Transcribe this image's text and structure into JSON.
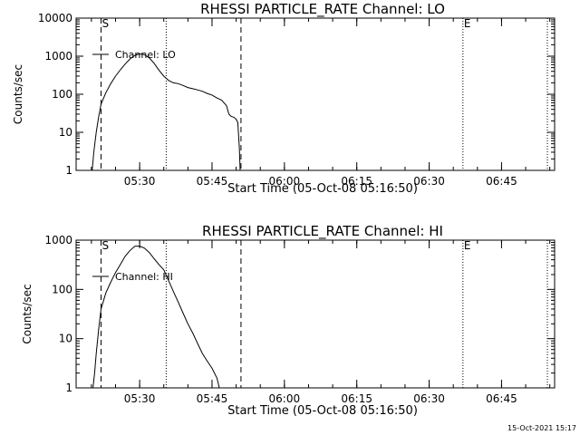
{
  "chart_data": [
    {
      "type": "line",
      "title": "RHESSI PARTICLE_RATE Channel: LO",
      "xlabel": "Start Time (05-Oct-08 05:16:50)",
      "ylabel": "Counts/sec",
      "yscale": "log",
      "xlim": [
        "05:16:50",
        "06:56:00"
      ],
      "ylim": [
        1,
        10000
      ],
      "x_ticks": [
        "05:30",
        "05:45",
        "06:00",
        "06:15",
        "06:30",
        "06:45"
      ],
      "y_ticks": [
        "1",
        "10",
        "100",
        "1000",
        "10000"
      ],
      "legend": "Channel: LO",
      "markers": [
        {
          "label": "S",
          "time": "05:22:00",
          "style": "dashed"
        },
        {
          "label": "",
          "time": "05:51:00",
          "style": "dashed"
        },
        {
          "label": "",
          "time": "05:35:30",
          "style": "dotted"
        },
        {
          "label": "E",
          "time": "06:37:00",
          "style": "dotted"
        },
        {
          "label": "",
          "time": "06:54:30",
          "style": "dotted"
        }
      ],
      "series": [
        {
          "time": [
            "05:20:10",
            "05:20:30",
            "05:21:00",
            "05:21:30",
            "05:22:00",
            "05:23:00",
            "05:24:00",
            "05:25:00",
            "05:26:00",
            "05:27:00",
            "05:28:00",
            "05:29:00",
            "05:30:00",
            "05:31:00",
            "05:32:00",
            "05:33:00",
            "05:34:00",
            "05:35:00",
            "05:36:00",
            "05:37:00",
            "05:38:00",
            "05:39:00",
            "05:40:00",
            "05:41:00",
            "05:42:00",
            "05:43:00",
            "05:44:00",
            "05:45:00",
            "05:46:00",
            "05:47:00",
            "05:48:00",
            "05:48:30",
            "05:49:00",
            "05:49:30",
            "05:50:00",
            "05:50:20",
            "05:50:40",
            "05:50:50"
          ],
          "values": [
            1,
            3,
            10,
            25,
            55,
            110,
            190,
            300,
            440,
            620,
            850,
            1050,
            1150,
            1100,
            900,
            650,
            430,
            300,
            230,
            200,
            190,
            170,
            150,
            140,
            130,
            120,
            105,
            95,
            80,
            70,
            50,
            30,
            26,
            25,
            22,
            18,
            4,
            1
          ]
        }
      ]
    },
    {
      "type": "line",
      "title": "RHESSI PARTICLE_RATE Channel: HI",
      "xlabel": "Start Time (05-Oct-08 05:16:50)",
      "ylabel": "Counts/sec",
      "yscale": "log",
      "xlim": [
        "05:16:50",
        "06:56:00"
      ],
      "ylim": [
        1,
        1000
      ],
      "x_ticks": [
        "05:30",
        "05:45",
        "06:00",
        "06:15",
        "06:30",
        "06:45"
      ],
      "y_ticks": [
        "1",
        "10",
        "100",
        "1000"
      ],
      "legend": "Channel: HI",
      "markers": [
        {
          "label": "S",
          "time": "05:22:00",
          "style": "dashed"
        },
        {
          "label": "",
          "time": "05:51:00",
          "style": "dashed"
        },
        {
          "label": "",
          "time": "05:35:30",
          "style": "dotted"
        },
        {
          "label": "E",
          "time": "06:37:00",
          "style": "dotted"
        },
        {
          "label": "",
          "time": "06:54:30",
          "style": "dotted"
        }
      ],
      "series": [
        {
          "time": [
            "05:20:20",
            "05:20:40",
            "05:21:00",
            "05:21:30",
            "05:22:00",
            "05:23:00",
            "05:24:00",
            "05:25:00",
            "05:26:00",
            "05:27:00",
            "05:28:00",
            "05:29:00",
            "05:30:00",
            "05:31:00",
            "05:32:00",
            "05:33:00",
            "05:34:00",
            "05:35:00",
            "05:36:00",
            "05:37:00",
            "05:38:00",
            "05:39:00",
            "05:40:00",
            "05:41:00",
            "05:42:00",
            "05:43:00",
            "05:44:00",
            "05:45:00",
            "05:45:30",
            "05:46:00",
            "05:46:30"
          ],
          "values": [
            1,
            2,
            5,
            15,
            40,
            85,
            140,
            220,
            320,
            470,
            620,
            750,
            760,
            690,
            560,
            420,
            320,
            250,
            150,
            90,
            55,
            33,
            20,
            13,
            8,
            5,
            3.5,
            2.5,
            2,
            1.6,
            1
          ]
        }
      ]
    }
  ],
  "timestamp": "15-Oct-2021 15:17"
}
